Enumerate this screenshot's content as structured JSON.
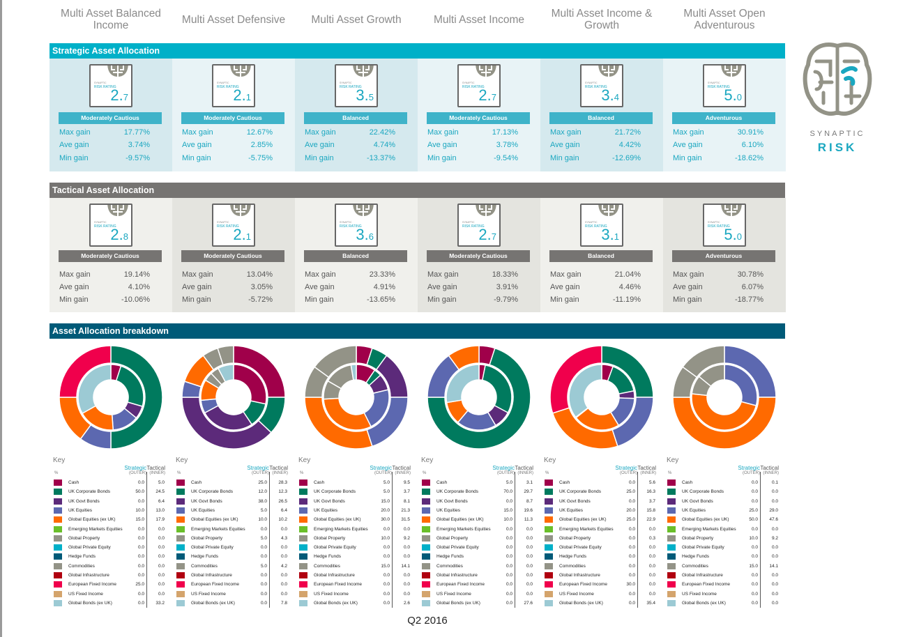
{
  "sections": {
    "strategic": "Strategic Asset Allocation",
    "tactical": "Tactical Asset Allocation",
    "breakdown": "Asset Allocation breakdown"
  },
  "colors": {
    "strategic_bar": "#00b0c8",
    "tactical_bar": "#767472",
    "breakdown_bar": "#005a78",
    "strategic_text": "#1aa7c0",
    "tactical_text": "#555555",
    "strategic_band": "#3fb3c9",
    "tactical_band": "#767472"
  },
  "badge": {
    "brand": "SYNAPTIC",
    "label": "RISK RATING"
  },
  "stat_labels": {
    "max": "Max gain",
    "ave": "Ave gain",
    "min": "Min gain"
  },
  "key": {
    "title": "Key",
    "unit": "%",
    "strategic": "Strategic",
    "tactical": "Tactical",
    "outer": "(OUTER)",
    "inner": "(INNER)"
  },
  "assets": [
    {
      "name": "Cash",
      "color": "#a0004a"
    },
    {
      "name": "UK Corporate Bonds",
      "color": "#007a5e"
    },
    {
      "name": "UK Govt Bonds",
      "color": "#5c2a7a"
    },
    {
      "name": "UK Equities",
      "color": "#5c68b0"
    },
    {
      "name": "Global Equities (ex UK)",
      "color": "#ff6a00"
    },
    {
      "name": "Emerging Markets Equities",
      "color": "#6abf2a"
    },
    {
      "name": "Global Property",
      "color": "#939387"
    },
    {
      "name": "Global Private Equity",
      "color": "#00b0c8"
    },
    {
      "name": "Hedge Funds",
      "color": "#005a78"
    },
    {
      "name": "Commodities",
      "color": "#939387"
    },
    {
      "name": "Global Infrastructure",
      "color": "#b00010"
    },
    {
      "name": "European Fixed Income",
      "color": "#f0004c"
    },
    {
      "name": "US Fixed Income",
      "color": "#d4a46c"
    },
    {
      "name": "Global Bonds (ex UK)",
      "color": "#9ccad4"
    }
  ],
  "funds": [
    {
      "name": "Multi Asset Balanced Income",
      "strategic": {
        "rating": "2.7",
        "band": "Moderately Cautious",
        "max": "17.77%",
        "ave": "3.74%",
        "min": "-9.57%"
      },
      "tactical": {
        "rating": "2.8",
        "band": "Moderately Cautious",
        "max": "19.14%",
        "ave": "4.10%",
        "min": "-10.06%"
      },
      "alloc_strategic": [
        "0.0",
        "50.0",
        "0.0",
        "10.0",
        "15.0",
        "0.0",
        "0.0",
        "0.0",
        "0.0",
        "0.0",
        "0.0",
        "25.0",
        "0.0",
        "0.0"
      ],
      "alloc_tactical": [
        "5.0",
        "24.5",
        "6.4",
        "13.0",
        "17.9",
        "0.0",
        "0.0",
        "0.0",
        "0.0",
        "0.0",
        "0.0",
        "0.0",
        "0.0",
        "33.2"
      ]
    },
    {
      "name": "Multi Asset Defensive",
      "strategic": {
        "rating": "2.1",
        "band": "Moderately Cautious",
        "max": "12.67%",
        "ave": "2.85%",
        "min": "-5.75%"
      },
      "tactical": {
        "rating": "2.1",
        "band": "Moderately Cautious",
        "max": "13.04%",
        "ave": "3.05%",
        "min": "-5.72%"
      },
      "alloc_strategic": [
        "25.0",
        "12.0",
        "38.0",
        "5.0",
        "10.0",
        "0.0",
        "5.0",
        "0.0",
        "0.0",
        "5.0",
        "0.0",
        "0.0",
        "0.0",
        "0.0"
      ],
      "alloc_tactical": [
        "28.3",
        "12.3",
        "26.5",
        "6.4",
        "10.2",
        "0.0",
        "4.3",
        "0.0",
        "0.0",
        "4.2",
        "0.0",
        "0.0",
        "0.0",
        "7.8"
      ]
    },
    {
      "name": "Multi Asset Growth",
      "strategic": {
        "rating": "3.5",
        "band": "Balanced",
        "max": "22.42%",
        "ave": "4.74%",
        "min": "-13.37%"
      },
      "tactical": {
        "rating": "3.6",
        "band": "Balanced",
        "max": "23.33%",
        "ave": "4.91%",
        "min": "-13.65%"
      },
      "alloc_strategic": [
        "5.0",
        "5.0",
        "15.0",
        "20.0",
        "30.0",
        "0.0",
        "10.0",
        "0.0",
        "0.0",
        "15.0",
        "0.0",
        "0.0",
        "0.0",
        "0.0"
      ],
      "alloc_tactical": [
        "9.5",
        "3.7",
        "8.1",
        "21.3",
        "31.5",
        "0.0",
        "9.2",
        "0.0",
        "0.0",
        "14.1",
        "0.0",
        "0.0",
        "0.0",
        "2.6"
      ]
    },
    {
      "name": "Multi Asset Income",
      "strategic": {
        "rating": "2.7",
        "band": "Moderately Cautious",
        "max": "17.13%",
        "ave": "3.78%",
        "min": "-9.54%"
      },
      "tactical": {
        "rating": "2.7",
        "band": "Moderately Cautious",
        "max": "18.33%",
        "ave": "3.91%",
        "min": "-9.79%"
      },
      "alloc_strategic": [
        "5.0",
        "70.0",
        "0.0",
        "15.0",
        "10.0",
        "0.0",
        "0.0",
        "0.0",
        "0.0",
        "0.0",
        "0.0",
        "0.0",
        "0.0",
        "0.0"
      ],
      "alloc_tactical": [
        "3.1",
        "29.7",
        "8.7",
        "19.6",
        "11.3",
        "0.0",
        "0.0",
        "0.0",
        "0.0",
        "0.0",
        "0.0",
        "0.0",
        "0.0",
        "27.6"
      ]
    },
    {
      "name": "Multi Asset Income & Growth",
      "strategic": {
        "rating": "3.4",
        "band": "Balanced",
        "max": "21.72%",
        "ave": "4.42%",
        "min": "-12.69%"
      },
      "tactical": {
        "rating": "3.1",
        "band": "Balanced",
        "max": "21.04%",
        "ave": "4.46%",
        "min": "-11.19%"
      },
      "alloc_strategic": [
        "0.0",
        "25.0",
        "0.0",
        "20.0",
        "25.0",
        "0.0",
        "0.0",
        "0.0",
        "0.0",
        "0.0",
        "0.0",
        "30.0",
        "0.0",
        "0.0"
      ],
      "alloc_tactical": [
        "5.6",
        "16.3",
        "3.7",
        "15.8",
        "22.9",
        "0.0",
        "0.3",
        "0.0",
        "0.0",
        "0.0",
        "0.0",
        "0.0",
        "0.0",
        "35.4"
      ]
    },
    {
      "name": "Multi Asset Open Adventurous",
      "strategic": {
        "rating": "5.0",
        "band": "Adventurous",
        "max": "30.91%",
        "ave": "6.10%",
        "min": "-18.62%"
      },
      "tactical": {
        "rating": "5.0",
        "band": "Adventurous",
        "max": "30.78%",
        "ave": "6.07%",
        "min": "-18.77%"
      },
      "alloc_strategic": [
        "0.0",
        "0.0",
        "0.0",
        "25.0",
        "50.0",
        "0.0",
        "10.0",
        "0.0",
        "0.0",
        "15.0",
        "0.0",
        "0.0",
        "0.0",
        "0.0"
      ],
      "alloc_tactical": [
        "0.1",
        "0.0",
        "0.0",
        "29.0",
        "47.6",
        "0.0",
        "9.2",
        "0.0",
        "0.0",
        "14.1",
        "0.0",
        "0.0",
        "0.0",
        "0.0"
      ]
    }
  ],
  "logo": {
    "line1": "SYNAPTIC",
    "line2": "RISK"
  },
  "footer": "Q2 2016"
}
